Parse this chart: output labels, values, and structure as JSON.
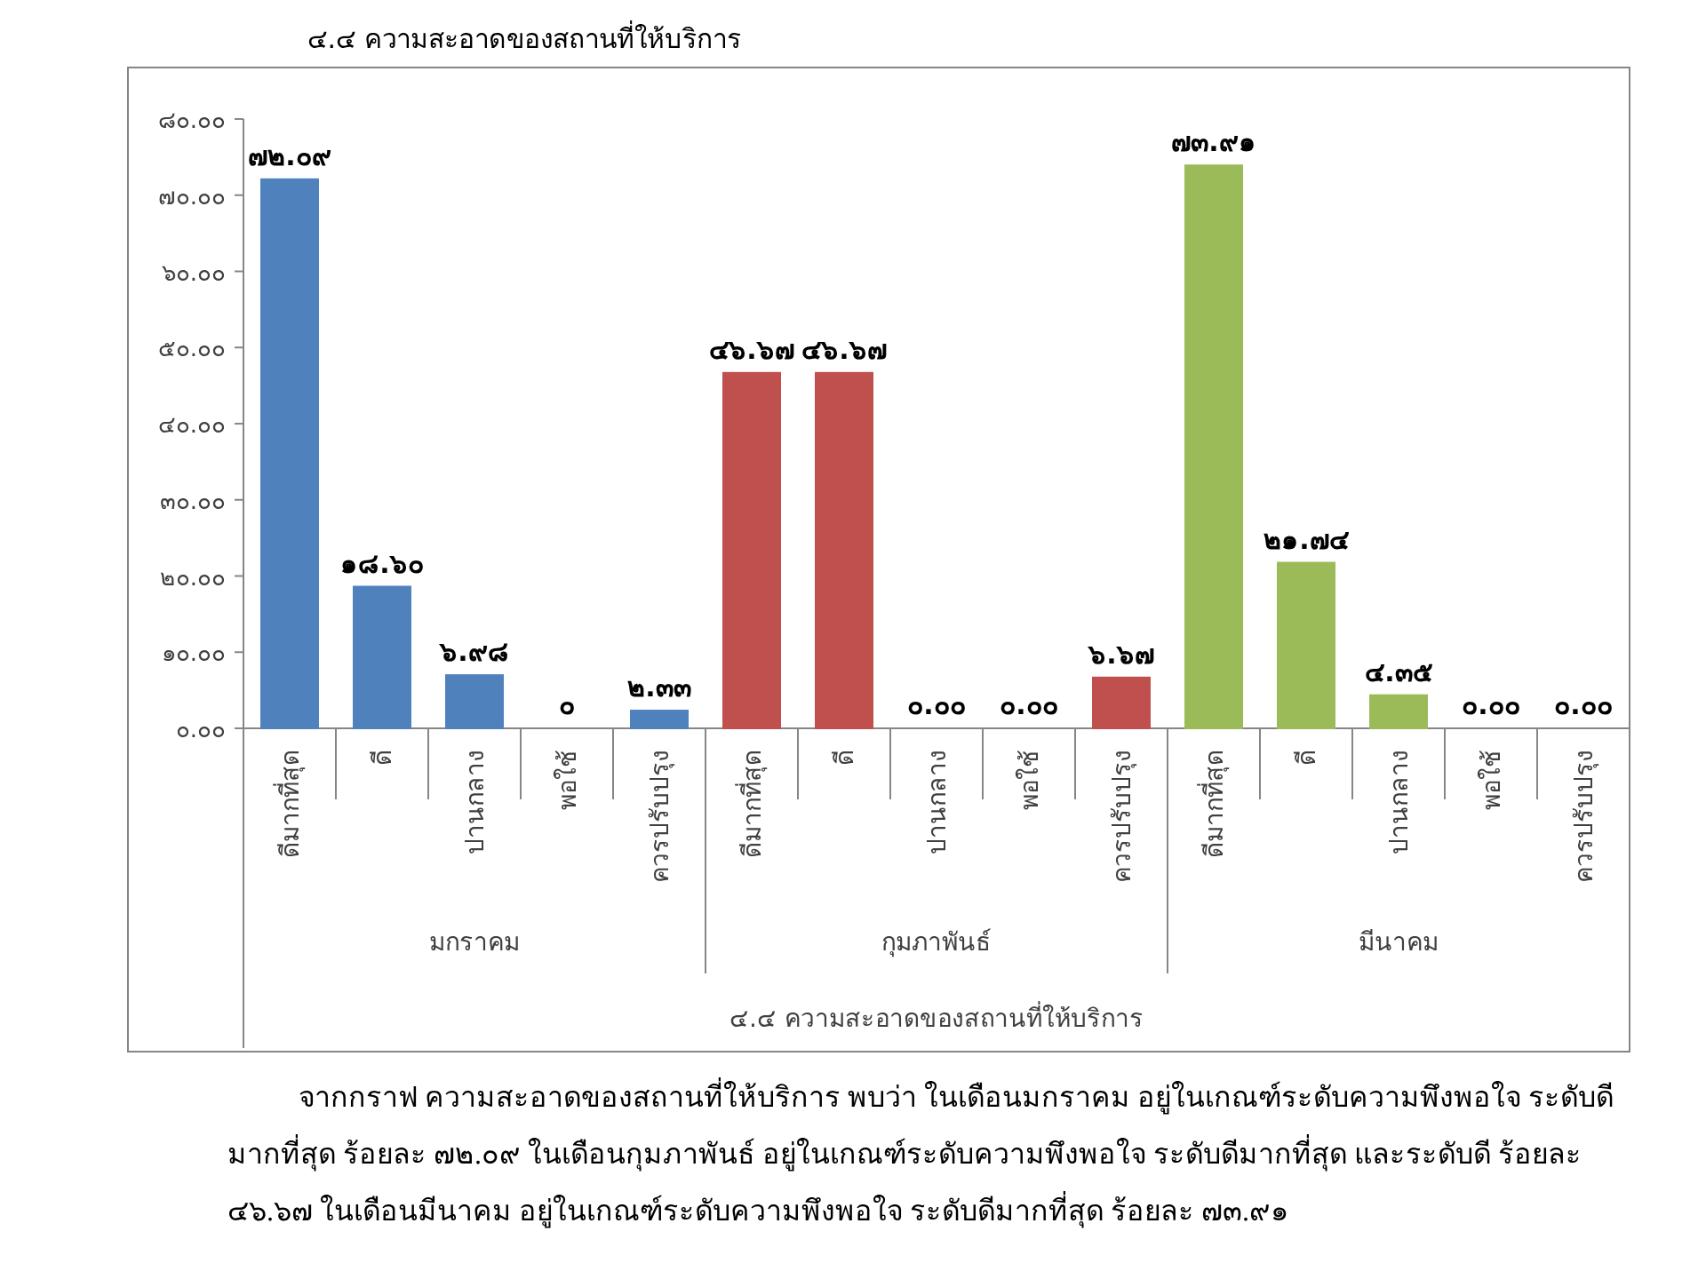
{
  "chart_data": {
    "type": "bar",
    "title": "๔.๔ ความสะอาดของสถานที่ให้บริการ",
    "xlabel": "๔.๔ ความสะอาดของสถานที่ให้บริการ",
    "categories": [
      "ดีมากที่สุด",
      "ดี",
      "ปานกลาง",
      "พอใช้",
      "ควรปรับปรุง",
      "ดีมากที่สุด",
      "ดี",
      "ปานกลาง",
      "พอใช้",
      "ควรปรับปรุง",
      "ดีมากที่สุด",
      "ดี",
      "ปานกลาง",
      "พอใช้",
      "ควรปรับปรุง"
    ],
    "values": [
      72.09,
      18.6,
      6.98,
      0,
      2.33,
      46.67,
      46.67,
      0,
      0,
      6.67,
      73.91,
      21.74,
      4.35,
      0,
      0
    ],
    "value_labels": [
      "๗๒.๐๙",
      "๑๘.๖๐",
      "๖.๙๘",
      "๐",
      "๒.๓๓",
      "๔๖.๖๗",
      "๔๖.๖๗",
      "๐.๐๐",
      "๐.๐๐",
      "๖.๖๗",
      "๗๓.๙๑",
      "๒๑.๗๔",
      "๔.๓๕",
      "๐.๐๐",
      "๐.๐๐"
    ],
    "colors": [
      "#4f81bd",
      "#4f81bd",
      "#4f81bd",
      "#4f81bd",
      "#4f81bd",
      "#c0504d",
      "#c0504d",
      "#c0504d",
      "#c0504d",
      "#c0504d",
      "#9bbb59",
      "#9bbb59",
      "#9bbb59",
      "#9bbb59",
      "#9bbb59"
    ],
    "ylim": [
      0,
      80
    ],
    "yticks": [
      {
        "value": 0,
        "label": "๐.๐๐"
      },
      {
        "value": 10,
        "label": "๑๐.๐๐"
      },
      {
        "value": 20,
        "label": "๒๐.๐๐"
      },
      {
        "value": 30,
        "label": "๓๐.๐๐"
      },
      {
        "value": 40,
        "label": "๔๐.๐๐"
      },
      {
        "value": 50,
        "label": "๕๐.๐๐"
      },
      {
        "value": 60,
        "label": "๖๐.๐๐"
      },
      {
        "value": 70,
        "label": "๗๐.๐๐"
      },
      {
        "value": 80,
        "label": "๘๐.๐๐"
      }
    ],
    "annotations": [
      "มกราคม",
      "กุมภาพันธ์",
      "มีนาคม",
      "จากกราฟ ความสะอาดของสถานที่ให้บริการ พบว่า ในเดือนมกราคม อยู่ในเกณฑ์ระดับความพึงพอใจ ระดับดีมากที่สุด ร้อยละ ๗๒.๐๙ ในเดือนกุมภาพันธ์ อยู่ในเกณฑ์ระดับความพึงพอใจ ระดับดีมากที่สุด และระดับดี ร้อยละ ๔๖.๖๗ ในเดือนมีนาคม อยู่ในเกณฑ์ระดับความพึงพอใจ ระดับดีมากที่สุด ร้อยละ ๗๓.๙๑"
    ]
  }
}
